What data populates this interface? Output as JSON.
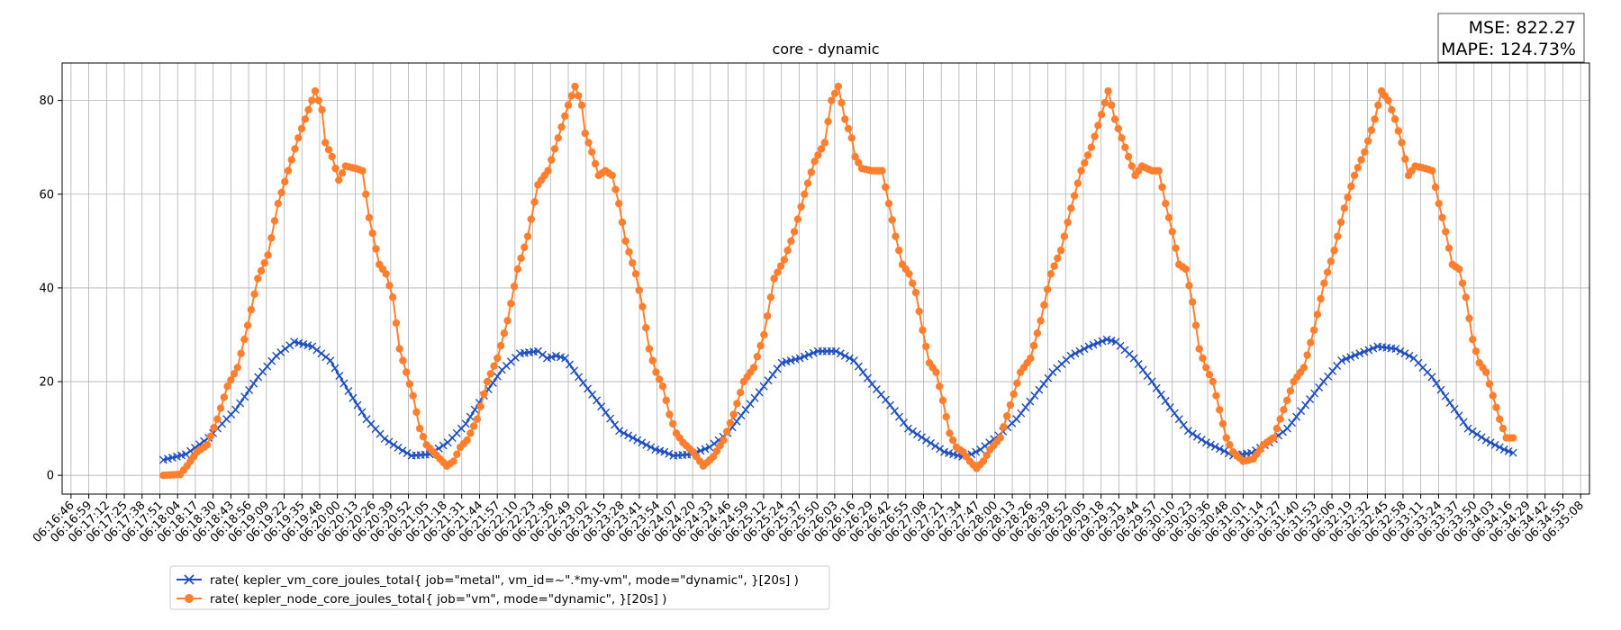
{
  "chart_data": {
    "type": "line",
    "title": "core - dynamic",
    "xlabel": "",
    "ylabel": "",
    "ylim": [
      -4,
      88
    ],
    "yticks": [
      0,
      20,
      40,
      60,
      80
    ],
    "grid": true,
    "legend_position": "lower-left, below plot",
    "metrics": {
      "mse": "MSE: 822.27",
      "mape": "MAPE: 124.73%"
    },
    "x_tick_labels": [
      "06:16:46",
      "06:16:59",
      "06:17:12",
      "06:17:25",
      "06:17:38",
      "06:17:51",
      "06:18:04",
      "06:18:17",
      "06:18:30",
      "06:18:43",
      "06:18:56",
      "06:19:09",
      "06:19:22",
      "06:19:35",
      "06:19:48",
      "06:20:00",
      "06:20:13",
      "06:20:26",
      "06:20:39",
      "06:20:52",
      "06:21:05",
      "06:21:18",
      "06:21:31",
      "06:21:44",
      "06:21:57",
      "06:22:10",
      "06:22:23",
      "06:22:36",
      "06:22:49",
      "06:23:02",
      "06:23:15",
      "06:23:28",
      "06:23:41",
      "06:23:54",
      "06:24:07",
      "06:24:20",
      "06:24:33",
      "06:24:46",
      "06:24:59",
      "06:25:12",
      "06:25:24",
      "06:25:37",
      "06:25:50",
      "06:26:03",
      "06:26:16",
      "06:26:29",
      "06:26:42",
      "06:26:55",
      "06:27:08",
      "06:27:21",
      "06:27:34",
      "06:27:47",
      "06:28:00",
      "06:28:13",
      "06:28:26",
      "06:28:39",
      "06:28:52",
      "06:29:05",
      "06:29:18",
      "06:29:31",
      "06:29:44",
      "06:29:57",
      "06:30:10",
      "06:30:23",
      "06:30:36",
      "06:30:48",
      "06:31:01",
      "06:31:14",
      "06:31:27",
      "06:31:40",
      "06:31:53",
      "06:32:06",
      "06:32:19",
      "06:32:32",
      "06:32:45",
      "06:32:58",
      "06:33:11",
      "06:33:24",
      "06:33:37",
      "06:33:50",
      "06:34:03",
      "06:34:16",
      "06:34:29",
      "06:34:42",
      "06:34:55",
      "06:35:08"
    ],
    "x_range_ticks": [
      -0.5,
      85.5
    ],
    "series": [
      {
        "name": "rate( kepler_vm_core_joules_total{ job=\"metal\", vm_id=~\".*my-vm\", mode=\"dynamic\", }[20s] )",
        "color": "#1f4fbf",
        "marker": "x",
        "t_start_tick": 5.2,
        "t_end_tick": 81.2,
        "keypoints": [
          [
            0,
            3.3
          ],
          [
            5,
            4.5
          ],
          [
            10,
            8
          ],
          [
            16,
            14
          ],
          [
            21,
            21
          ],
          [
            25,
            25.5
          ],
          [
            29,
            28.5
          ],
          [
            33,
            27.5
          ],
          [
            37,
            24.5
          ],
          [
            41,
            18
          ],
          [
            45,
            12
          ],
          [
            49,
            7.8
          ],
          [
            53,
            5.3
          ],
          [
            55,
            4.2
          ],
          [
            59,
            4.5
          ],
          [
            63,
            7
          ],
          [
            67,
            11
          ],
          [
            71,
            17
          ],
          [
            75,
            22.5
          ],
          [
            79,
            26
          ],
          [
            83,
            26.5
          ],
          [
            85,
            25
          ],
          [
            87,
            25.5
          ],
          [
            89,
            25
          ],
          [
            92,
            21
          ],
          [
            96,
            16
          ],
          [
            101,
            9.5
          ],
          [
            105,
            7.5
          ],
          [
            109,
            5.5
          ],
          [
            111,
            5
          ],
          [
            113,
            4.2
          ],
          [
            117,
            4.5
          ],
          [
            121,
            6
          ],
          [
            125,
            9
          ],
          [
            129,
            14
          ],
          [
            133,
            19
          ],
          [
            137,
            24
          ],
          [
            141,
            25
          ],
          [
            145,
            26.5
          ],
          [
            149,
            26.5
          ],
          [
            153,
            24.5
          ],
          [
            157,
            19.5
          ],
          [
            161,
            15
          ],
          [
            165,
            10
          ],
          [
            169,
            7.5
          ],
          [
            173,
            5
          ],
          [
            177,
            4
          ],
          [
            179,
            4.5
          ],
          [
            181,
            5.5
          ],
          [
            185,
            8.5
          ],
          [
            189,
            12
          ],
          [
            193,
            17
          ],
          [
            197,
            22
          ],
          [
            201,
            25.5
          ],
          [
            205,
            27.5
          ],
          [
            209,
            29
          ],
          [
            211,
            28.5
          ],
          [
            215,
            25
          ],
          [
            219,
            20
          ],
          [
            223,
            14.5
          ],
          [
            227,
            9.5
          ],
          [
            231,
            7
          ],
          [
            235,
            5.2
          ],
          [
            237,
            4.2
          ],
          [
            241,
            4.8
          ],
          [
            245,
            7
          ],
          [
            249,
            10
          ],
          [
            253,
            15
          ],
          [
            257,
            20
          ],
          [
            261,
            24.5
          ],
          [
            265,
            26
          ],
          [
            269,
            27.5
          ],
          [
            273,
            27
          ],
          [
            277,
            25
          ],
          [
            281,
            21
          ],
          [
            285,
            15.5
          ],
          [
            289,
            10
          ],
          [
            293,
            7.5
          ],
          [
            297,
            5.5
          ],
          [
            299,
            4.8
          ]
        ]
      },
      {
        "name": "rate( kepler_node_core_joules_total{ job=\"vm\", mode=\"dynamic\", }[20s] )",
        "color": "#ff7f2e",
        "marker": "o",
        "t_start_tick": 5.2,
        "t_end_tick": 81.2,
        "keypoints": [
          [
            0,
            0
          ],
          [
            5,
            0.2
          ],
          [
            7,
            2
          ],
          [
            10,
            5
          ],
          [
            13,
            6.5
          ],
          [
            16,
            12
          ],
          [
            19,
            19
          ],
          [
            22,
            23
          ],
          [
            25,
            32
          ],
          [
            28,
            42
          ],
          [
            31,
            47
          ],
          [
            34,
            58
          ],
          [
            37,
            65
          ],
          [
            40,
            72
          ],
          [
            43,
            78
          ],
          [
            45,
            82
          ],
          [
            47,
            78
          ],
          [
            48,
            71
          ],
          [
            50,
            68
          ],
          [
            52,
            63
          ],
          [
            54,
            66
          ],
          [
            57,
            65.5
          ],
          [
            59,
            65
          ],
          [
            61,
            55
          ],
          [
            64,
            45
          ],
          [
            66,
            43
          ],
          [
            68,
            38
          ],
          [
            70,
            27
          ],
          [
            72,
            22
          ],
          [
            74,
            17
          ],
          [
            76,
            10
          ],
          [
            78,
            6.5
          ],
          [
            80,
            5
          ],
          [
            82,
            3.5
          ],
          [
            84,
            2
          ],
          [
            86,
            3
          ],
          [
            88,
            6
          ],
          [
            90,
            7.5
          ],
          [
            93,
            12
          ],
          [
            96,
            20
          ],
          [
            99,
            25
          ],
          [
            102,
            33
          ],
          [
            105,
            44
          ],
          [
            108,
            51
          ],
          [
            111,
            62
          ],
          [
            114,
            65
          ],
          [
            117,
            72
          ],
          [
            120,
            79
          ],
          [
            122,
            83
          ],
          [
            124,
            79
          ],
          [
            125,
            73
          ],
          [
            127,
            69
          ],
          [
            129,
            64
          ],
          [
            131,
            65
          ],
          [
            133,
            64
          ],
          [
            135,
            58
          ],
          [
            137,
            50
          ],
          [
            140,
            43
          ],
          [
            142,
            36
          ],
          [
            144,
            27
          ],
          [
            146,
            22
          ],
          [
            148,
            19
          ],
          [
            150,
            13
          ],
          [
            152,
            9
          ],
          [
            154,
            7
          ],
          [
            157,
            5
          ],
          [
            160,
            2
          ],
          [
            163,
            4
          ],
          [
            166,
            7.5
          ],
          [
            169,
            13
          ],
          [
            172,
            20
          ],
          [
            175,
            23
          ],
          [
            178,
            30
          ],
          [
            181,
            42
          ],
          [
            184,
            46
          ],
          [
            187,
            52
          ],
          [
            190,
            60
          ],
          [
            193,
            67
          ],
          [
            196,
            71
          ],
          [
            198,
            80
          ],
          [
            200,
            83
          ],
          [
            202,
            76
          ],
          [
            204,
            72
          ],
          [
            205,
            68
          ],
          [
            207,
            65.5
          ],
          [
            210,
            65
          ],
          [
            213,
            65
          ],
          [
            215,
            58
          ],
          [
            217,
            51
          ],
          [
            219,
            45
          ],
          [
            221,
            43
          ],
          [
            223,
            39
          ],
          [
            225,
            31
          ],
          [
            227,
            24
          ],
          [
            229,
            22
          ],
          [
            231,
            16
          ],
          [
            233,
            9
          ],
          [
            235,
            6
          ],
          [
            237,
            5
          ],
          [
            239,
            3
          ],
          [
            241,
            1.5
          ],
          [
            243,
            3
          ],
          [
            245,
            5.5
          ],
          [
            248,
            8
          ],
          [
            251,
            15
          ],
          [
            254,
            22
          ],
          [
            257,
            25
          ],
          [
            260,
            33
          ],
          [
            263,
            43
          ],
          [
            266,
            48
          ],
          [
            269,
            57
          ],
          [
            272,
            65
          ],
          [
            275,
            70
          ],
          [
            278,
            77
          ],
          [
            280,
            82
          ],
          [
            282,
            76
          ],
          [
            284,
            72
          ],
          [
            286,
            68
          ],
          [
            288,
            64
          ],
          [
            290,
            66
          ],
          [
            293,
            65
          ],
          [
            295,
            65
          ],
          [
            297,
            58
          ],
          [
            299,
            52
          ],
          [
            301,
            45
          ],
          [
            303,
            44
          ],
          [
            305,
            37
          ],
          [
            307,
            27
          ],
          [
            309,
            23
          ],
          [
            311,
            20
          ],
          [
            313,
            14
          ],
          [
            315,
            8
          ],
          [
            317,
            5
          ],
          [
            320,
            3
          ],
          [
            323,
            3.5
          ],
          [
            326,
            6.5
          ],
          [
            329,
            8
          ],
          [
            332,
            14
          ],
          [
            335,
            20
          ],
          [
            338,
            23
          ],
          [
            341,
            31
          ],
          [
            344,
            41
          ],
          [
            347,
            48
          ],
          [
            350,
            57
          ],
          [
            353,
            64
          ],
          [
            356,
            69
          ],
          [
            359,
            76
          ],
          [
            361,
            82
          ],
          [
            363,
            80
          ],
          [
            365,
            76
          ],
          [
            367,
            71
          ],
          [
            369,
            64
          ],
          [
            371,
            66
          ],
          [
            374,
            65.5
          ],
          [
            376,
            65
          ],
          [
            378,
            58
          ],
          [
            380,
            52
          ],
          [
            382,
            45
          ],
          [
            384,
            44
          ],
          [
            386,
            38
          ],
          [
            388,
            29
          ],
          [
            390,
            24
          ],
          [
            392,
            22
          ],
          [
            394,
            17
          ],
          [
            396,
            12
          ],
          [
            398,
            8
          ],
          [
            400,
            8
          ]
        ]
      }
    ]
  }
}
